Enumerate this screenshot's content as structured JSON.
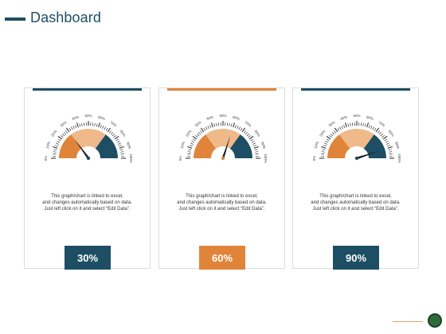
{
  "page": {
    "title": "Dashboard"
  },
  "colors": {
    "navy": "#1d4e63",
    "orange": "#e0843a",
    "peach": "#efb98a",
    "accent_bars": [
      "#1d4e63",
      "#e0843a",
      "#1d4e63"
    ],
    "value_boxes": [
      "#1d4e63",
      "#e0843a",
      "#1d4e63"
    ]
  },
  "gauge_ticks": [
    "0%",
    "10%",
    "20%",
    "30%",
    "40%",
    "50%",
    "60%",
    "70%",
    "80%",
    "90%",
    "100%"
  ],
  "cards": [
    {
      "value": 30,
      "value_label": "30%",
      "desc": [
        "This graph/chart is linked to excel,",
        "and changes automatically based on data.",
        "Just left click on it and select “Edit Data”."
      ]
    },
    {
      "value": 60,
      "value_label": "60%",
      "desc": [
        "This graph/chart is linked to excel,",
        "and changes automatically based on data.",
        "Just left click on it and select “Edit Data”."
      ]
    },
    {
      "value": 90,
      "value_label": "90%",
      "desc": [
        "This graph/chart is linked to excel,",
        "and changes automatically based on data.",
        "Just left click on it and select “Edit Data”."
      ]
    }
  ]
}
